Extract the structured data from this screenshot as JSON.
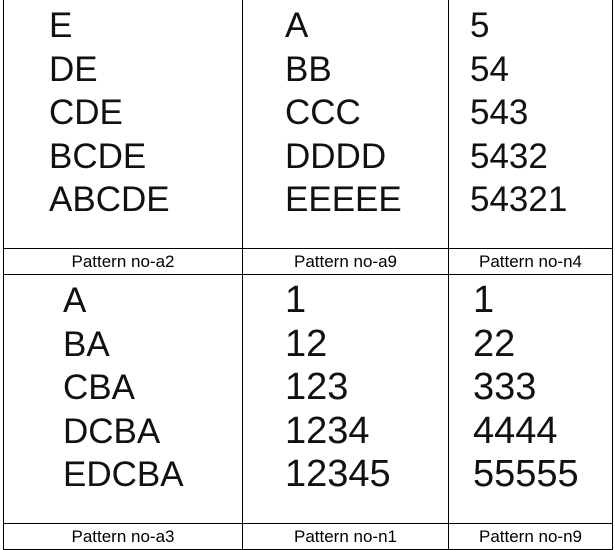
{
  "patterns": [
    {
      "label": "Pattern no-a2",
      "lines": [
        "E",
        "DE",
        "CDE",
        "BCDE",
        "ABCDE"
      ]
    },
    {
      "label": "Pattern no-a9",
      "lines": [
        "A",
        "BB",
        "CCC",
        "DDDD",
        "EEEEE"
      ]
    },
    {
      "label": "Pattern no-n4",
      "lines": [
        "5",
        "54",
        "543",
        "5432",
        "54321"
      ]
    },
    {
      "label": "Pattern no-a3",
      "lines": [
        "A",
        "BA",
        "CBA",
        "DCBA",
        "EDCBA"
      ]
    },
    {
      "label": "Pattern no-n1",
      "lines": [
        "1",
        "12",
        "123",
        "1234",
        "12345"
      ]
    },
    {
      "label": "Pattern no-n9",
      "lines": [
        "1",
        "22",
        "333",
        "4444",
        "55555"
      ]
    }
  ]
}
